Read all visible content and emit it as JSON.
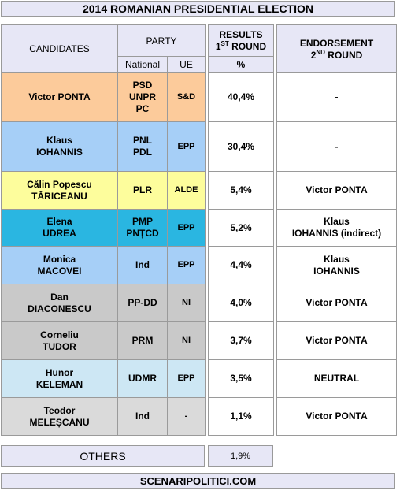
{
  "title": "2014 ROMANIAN PRESIDENTIAL ELECTION",
  "headers": {
    "candidates": "CANDIDATES",
    "party": "PARTY",
    "national": "National",
    "ue": "UE",
    "results_line1": "RESULTS",
    "results_line2_pre": "1",
    "results_line2_sup": "ST",
    "results_line2_post": " ROUND",
    "percent": "%",
    "endorsement_line1": "ENDORSEMENT",
    "endorsement_line2_pre": "2",
    "endorsement_line2_sup": "ND",
    "endorsement_line2_post": " ROUND"
  },
  "colors": {
    "header_bg": "#e7e7f6",
    "ponta": "#fccb9b",
    "iohannis": "#a6cff7",
    "tariceanu": "#fdfd9c",
    "udrea": "#2ab6e1",
    "macovei": "#a6cff7",
    "grey": "#c9c9c9",
    "keleman": "#cde7f4",
    "melescanu": "#dadada"
  },
  "rows": [
    {
      "name": "Victor PONTA",
      "national": "PSD\nUNPR\nPC",
      "ue": "S&D",
      "result": "40,4%",
      "endorsement": "-",
      "color": "#fccb9b"
    },
    {
      "name": "Klaus\nIOHANNIS",
      "national": "PNL\nPDL",
      "ue": "EPP",
      "result": "30,4%",
      "endorsement": "-",
      "color": "#a6cff7"
    },
    {
      "name": "Călin Popescu\nTĂRICEANU",
      "national": "PLR",
      "ue": "ALDE",
      "result": "5,4%",
      "endorsement": "Victor PONTA",
      "color": "#fdfd9c"
    },
    {
      "name": "Elena\nUDREA",
      "national": "PMP\nPNȚCD",
      "ue": "EPP",
      "result": "5,2%",
      "endorsement": "Klaus\nIOHANNIS (indirect)",
      "color": "#2ab6e1"
    },
    {
      "name": "Monica\nMACOVEI",
      "national": "Ind",
      "ue": "EPP",
      "result": "4,4%",
      "endorsement": "Klaus\nIOHANNIS",
      "color": "#a6cff7"
    },
    {
      "name": "Dan\nDIACONESCU",
      "national": "PP-DD",
      "ue": "NI",
      "result": "4,0%",
      "endorsement": "Victor PONTA",
      "color": "#c9c9c9"
    },
    {
      "name": "Corneliu\nTUDOR",
      "national": "PRM",
      "ue": "NI",
      "result": "3,7%",
      "endorsement": "Victor PONTA",
      "color": "#c9c9c9"
    },
    {
      "name": "Hunor\nKELEMAN",
      "national": "UDMR",
      "ue": "EPP",
      "result": "3,5%",
      "endorsement": "NEUTRAL",
      "color": "#cde7f4"
    },
    {
      "name": "Teodor\nMELEȘCANU",
      "national": "Ind",
      "ue": "-",
      "result": "1,1%",
      "endorsement": "Victor PONTA",
      "color": "#dadada"
    }
  ],
  "others": {
    "label": "OTHERS",
    "result": "1,9%"
  },
  "footer": "SCENARIPOLITICI.COM"
}
